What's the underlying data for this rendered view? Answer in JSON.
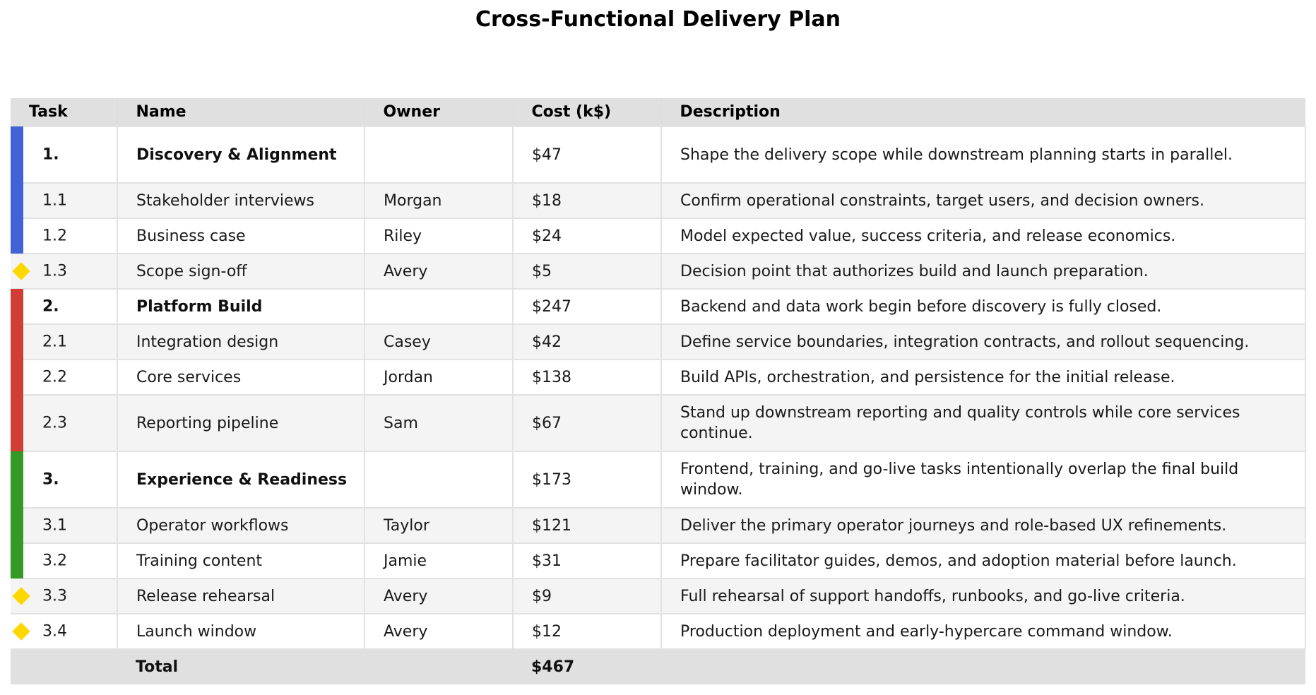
{
  "title": "Cross-Functional Delivery Plan",
  "columns": {
    "task": "Task",
    "name": "Name",
    "owner": "Owner",
    "cost": "Cost (k$)",
    "description": "Description"
  },
  "colors": {
    "phase1": "#4263D8",
    "phase2": "#D03E36",
    "phase3": "#339A26",
    "milestone": "#FFD700",
    "header_bg": "#E0E0E0",
    "alt_row_bg": "#F4F4F4"
  },
  "rows": [
    {
      "task": "1.",
      "name": "Discovery & Alignment",
      "owner": "",
      "cost": "$47",
      "description": "Shape the delivery scope while downstream planning starts in parallel.",
      "type": "phase",
      "marker": "bar-blue"
    },
    {
      "task": "1.1",
      "name": "Stakeholder interviews",
      "owner": "Morgan",
      "cost": "$18",
      "description": "Confirm operational constraints, target users, and decision owners.",
      "type": "task",
      "marker": "bar-blue"
    },
    {
      "task": "1.2",
      "name": "Business case",
      "owner": "Riley",
      "cost": "$24",
      "description": "Model expected value, success criteria, and release economics.",
      "type": "task",
      "marker": "bar-blue"
    },
    {
      "task": "1.3",
      "name": "Scope sign-off",
      "owner": "Avery",
      "cost": "$5",
      "description": "Decision point that authorizes build and launch preparation.",
      "type": "milestone",
      "marker": "diamond"
    },
    {
      "task": "2.",
      "name": "Platform Build",
      "owner": "",
      "cost": "$247",
      "description": "Backend and data work begin before discovery is fully closed.",
      "type": "phase",
      "marker": "bar-red"
    },
    {
      "task": "2.1",
      "name": "Integration design",
      "owner": "Casey",
      "cost": "$42",
      "description": "Define service boundaries, integration contracts, and rollout sequencing.",
      "type": "task",
      "marker": "bar-red"
    },
    {
      "task": "2.2",
      "name": "Core services",
      "owner": "Jordan",
      "cost": "$138",
      "description": "Build APIs, orchestration, and persistence for the initial release.",
      "type": "task",
      "marker": "bar-red"
    },
    {
      "task": "2.3",
      "name": "Reporting pipeline",
      "owner": "Sam",
      "cost": "$67",
      "description": "Stand up downstream reporting and quality controls while core services continue.",
      "type": "task",
      "marker": "bar-red"
    },
    {
      "task": "3.",
      "name": "Experience & Readiness",
      "owner": "",
      "cost": "$173",
      "description": "Frontend, training, and go-live tasks intentionally overlap the final build window.",
      "type": "phase",
      "marker": "bar-green"
    },
    {
      "task": "3.1",
      "name": "Operator workflows",
      "owner": "Taylor",
      "cost": "$121",
      "description": "Deliver the primary operator journeys and role-based UX refinements.",
      "type": "task",
      "marker": "bar-green"
    },
    {
      "task": "3.2",
      "name": "Training content",
      "owner": "Jamie",
      "cost": "$31",
      "description": "Prepare facilitator guides, demos, and adoption material before launch.",
      "type": "task",
      "marker": "bar-green"
    },
    {
      "task": "3.3",
      "name": "Release rehearsal",
      "owner": "Avery",
      "cost": "$9",
      "description": "Full rehearsal of support handoffs, runbooks, and go-live criteria.",
      "type": "milestone",
      "marker": "diamond"
    },
    {
      "task": "3.4",
      "name": "Launch window",
      "owner": "Avery",
      "cost": "$12",
      "description": "Production deployment and early-hypercare command window.",
      "type": "milestone",
      "marker": "diamond"
    }
  ],
  "total": {
    "label": "Total",
    "cost": "$467"
  }
}
